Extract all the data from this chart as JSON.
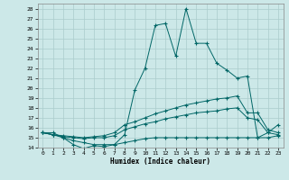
{
  "xlabel": "Humidex (Indice chaleur)",
  "background_color": "#cce8e8",
  "line_color": "#006666",
  "grid_color": "#aacccc",
  "xlim": [
    -0.5,
    23.5
  ],
  "ylim": [
    14,
    28.5
  ],
  "yticks": [
    14,
    15,
    16,
    17,
    18,
    19,
    20,
    21,
    22,
    23,
    24,
    25,
    26,
    27,
    28
  ],
  "xticks": [
    0,
    1,
    2,
    3,
    4,
    5,
    6,
    7,
    8,
    9,
    10,
    11,
    12,
    13,
    14,
    15,
    16,
    17,
    18,
    19,
    20,
    21,
    22,
    23
  ],
  "line1_x": [
    0,
    1,
    2,
    3,
    4,
    5,
    6,
    7,
    8,
    9,
    10,
    11,
    12,
    13,
    14,
    15,
    16,
    17,
    18,
    19,
    20,
    21,
    22,
    23
  ],
  "line1_y": [
    15.5,
    15.5,
    15.0,
    14.3,
    13.9,
    14.2,
    14.1,
    14.3,
    15.3,
    19.8,
    22.0,
    26.3,
    26.5,
    23.2,
    28.0,
    24.5,
    24.5,
    22.5,
    21.8,
    21.0,
    21.2,
    15.0,
    15.5,
    16.3
  ],
  "line2_x": [
    0,
    1,
    2,
    3,
    4,
    5,
    6,
    7,
    8,
    9,
    10,
    11,
    12,
    13,
    14,
    15,
    16,
    17,
    18,
    19,
    20,
    21,
    22,
    23
  ],
  "line2_y": [
    15.5,
    15.3,
    15.2,
    15.1,
    15.0,
    15.1,
    15.2,
    15.5,
    16.3,
    16.6,
    17.0,
    17.4,
    17.7,
    18.0,
    18.3,
    18.5,
    18.7,
    18.9,
    19.0,
    19.2,
    17.5,
    17.5,
    15.8,
    15.5
  ],
  "line3_x": [
    0,
    1,
    2,
    3,
    4,
    5,
    6,
    7,
    8,
    9,
    10,
    11,
    12,
    13,
    14,
    15,
    16,
    17,
    18,
    19,
    20,
    21,
    22,
    23
  ],
  "line3_y": [
    15.5,
    15.3,
    15.1,
    15.0,
    14.9,
    15.0,
    15.0,
    15.2,
    15.8,
    16.1,
    16.4,
    16.6,
    16.9,
    17.1,
    17.3,
    17.5,
    17.6,
    17.7,
    17.9,
    18.0,
    17.0,
    16.8,
    15.5,
    15.3
  ],
  "line4_x": [
    0,
    1,
    2,
    3,
    4,
    5,
    6,
    7,
    8,
    9,
    10,
    11,
    12,
    13,
    14,
    15,
    16,
    17,
    18,
    19,
    20,
    21,
    22,
    23
  ],
  "line4_y": [
    15.5,
    15.3,
    15.0,
    14.7,
    14.5,
    14.3,
    14.3,
    14.3,
    14.5,
    14.7,
    14.9,
    15.0,
    15.0,
    15.0,
    15.0,
    15.0,
    15.0,
    15.0,
    15.0,
    15.0,
    15.0,
    15.0,
    15.0,
    15.2
  ]
}
